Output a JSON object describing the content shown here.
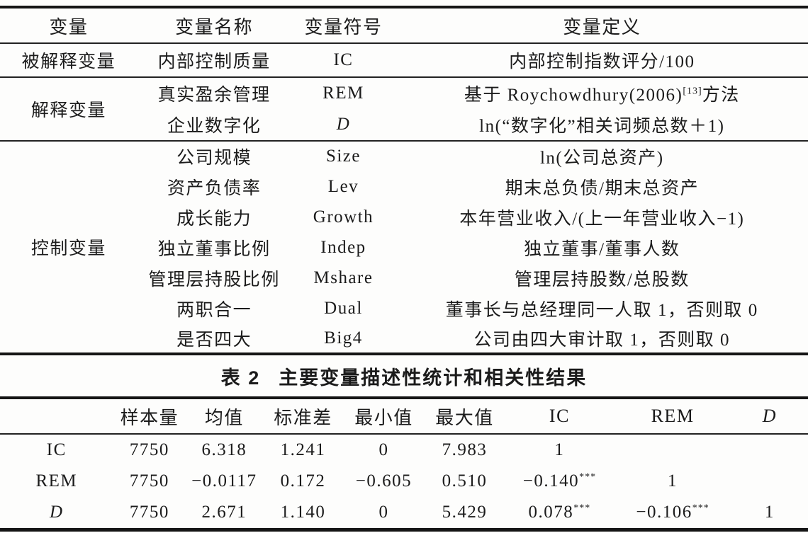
{
  "table1": {
    "headers": [
      "变量",
      "变量名称",
      "变量符号",
      "变量定义"
    ],
    "groups": {
      "explained": "被解释变量",
      "explanatory": "解释变量",
      "control": "控制变量"
    },
    "rows": [
      {
        "name": "内部控制质量",
        "symbol": "IC",
        "def": "内部控制指数评分/100"
      },
      {
        "name": "真实盈余管理",
        "symbol": "REM",
        "def_pre": "基于 Roychowdhury(2006)",
        "def_sup": "[13]",
        "def_post": "方法"
      },
      {
        "name": "企业数字化",
        "symbol": "D",
        "def": "ln(“数字化”相关词频总数＋1)"
      },
      {
        "name": "公司规模",
        "symbol": "Size",
        "def": "ln(公司总资产)"
      },
      {
        "name": "资产负债率",
        "symbol": "Lev",
        "def": "期末总负债/期末总资产"
      },
      {
        "name": "成长能力",
        "symbol": "Growth",
        "def": "本年营业收入/(上一年营业收入−1)"
      },
      {
        "name": "独立董事比例",
        "symbol": "Indep",
        "def": "独立董事/董事人数"
      },
      {
        "name": "管理层持股比例",
        "symbol": "Mshare",
        "def": "管理层持股数/总股数"
      },
      {
        "name": "两职合一",
        "symbol": "Dual",
        "def": "董事长与总经理同一人取 1，否则取 0"
      },
      {
        "name": "是否四大",
        "symbol": "Big4",
        "def": "公司由四大审计取 1，否则取 0"
      }
    ]
  },
  "caption": {
    "number": "表 2",
    "title": "主要变量描述性统计和相关性结果"
  },
  "table2": {
    "headers": [
      "",
      "样本量",
      "均值",
      "标准差",
      "最小值",
      "最大值",
      "IC",
      "REM",
      "D"
    ],
    "rows": [
      {
        "label": "IC",
        "n": "7750",
        "mean": "6.318",
        "sd": "1.241",
        "min": "0",
        "max": "7.983",
        "ic": "1",
        "ic_sup": "",
        "rem": "",
        "rem_sup": "",
        "d": ""
      },
      {
        "label": "REM",
        "n": "7750",
        "mean": "−0.0117",
        "sd": "0.172",
        "min": "−0.605",
        "max": "0.510",
        "ic": "−0.140",
        "ic_sup": "***",
        "rem": "1",
        "rem_sup": "",
        "d": ""
      },
      {
        "label": "D",
        "n": "7750",
        "mean": "2.671",
        "sd": "1.140",
        "min": "0",
        "max": "5.429",
        "ic": "0.078",
        "ic_sup": "***",
        "rem": "−0.106",
        "rem_sup": "***",
        "d": "1"
      }
    ]
  }
}
